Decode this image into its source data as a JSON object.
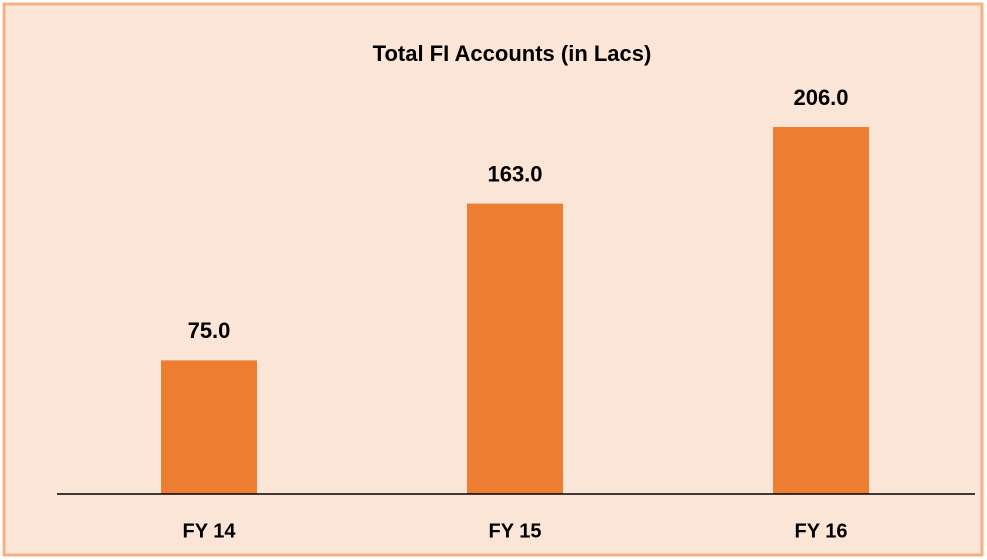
{
  "chart_data": {
    "type": "bar",
    "title": "Total FI Accounts (in Lacs)",
    "categories": [
      "FY 14",
      "FY 15",
      "FY 16"
    ],
    "values": [
      75,
      163,
      206
    ],
    "value_labels": [
      "75.0",
      "163.0",
      "206.0"
    ],
    "color": "#ed7d31"
  }
}
